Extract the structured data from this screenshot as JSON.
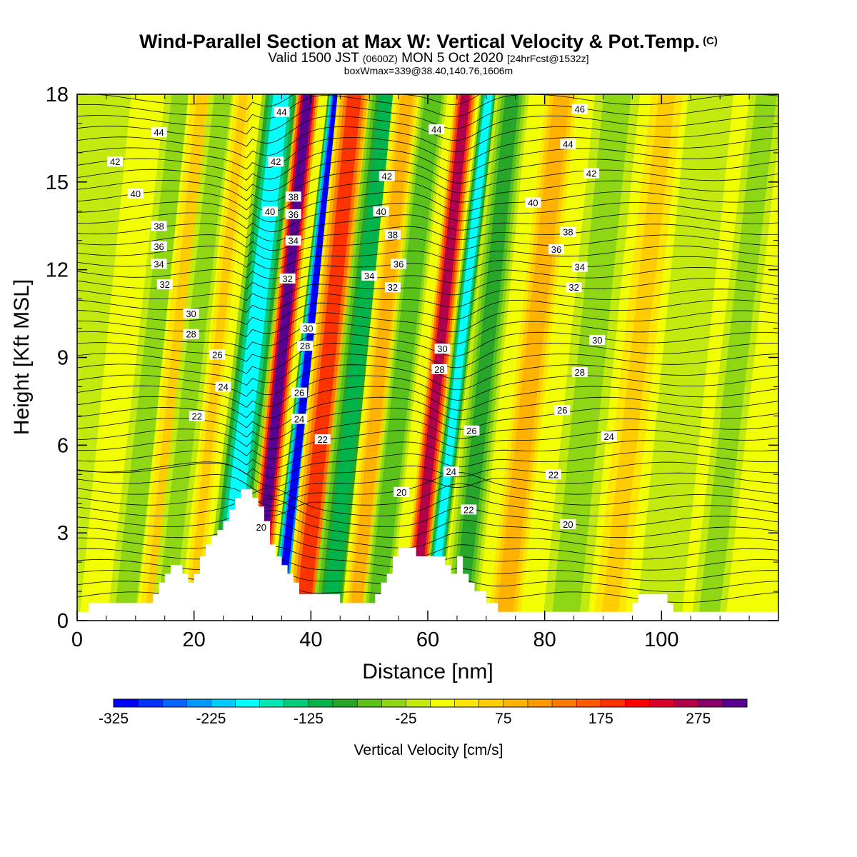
{
  "header": {
    "title": "Wind-Parallel Section at Max W: Vertical Velocity & Pot.Temp.",
    "copyright": "(C)",
    "valid_prefix": "Valid 1500 JST",
    "valid_utc": "(0600Z)",
    "valid_date": "MON 5 Oct 2020",
    "forecast": "[24hrFcst@1532z]",
    "box_info": "boxWmax=339@38.40,140.76,1606m"
  },
  "chart_data": {
    "type": "heatmap",
    "xlabel": "Distance [nm]",
    "ylabel": "Height [Kft MSL]",
    "xlim": [
      0,
      120
    ],
    "ylim": [
      0,
      18
    ],
    "x_ticks": [
      "0",
      "20",
      "40",
      "60",
      "80",
      "100"
    ],
    "y_ticks": [
      "0",
      "3",
      "6",
      "9",
      "12",
      "15",
      "18"
    ],
    "colorbar": {
      "label": "Vertical Velocity [cm/s]",
      "min": -325,
      "max": 350,
      "step": 25,
      "tick_labels": [
        "-325",
        "-225",
        "-125",
        "-25",
        "75",
        "175",
        "275"
      ],
      "colors": [
        "#0000ff",
        "#0033ff",
        "#0066ff",
        "#0099ff",
        "#00ccff",
        "#00ffff",
        "#00e6b4",
        "#00cc7a",
        "#00b34a",
        "#27a62a",
        "#5ac21a",
        "#8fd614",
        "#c2ea0e",
        "#f2ff00",
        "#ffe600",
        "#ffcc00",
        "#ffb300",
        "#ff9900",
        "#ff7a00",
        "#ff5a00",
        "#ff3300",
        "#ff0000",
        "#d9002a",
        "#b3004a",
        "#8a006a",
        "#5a0090"
      ]
    },
    "terrain_top_kft": [
      [
        0,
        0.3
      ],
      [
        2,
        0.6
      ],
      [
        12,
        0.6
      ],
      [
        13,
        0.9
      ],
      [
        14,
        1.3
      ],
      [
        15,
        1.6
      ],
      [
        16,
        1.9
      ],
      [
        17,
        1.9
      ],
      [
        18,
        1.6
      ],
      [
        19,
        1.3
      ],
      [
        20,
        1.6
      ],
      [
        21,
        2.2
      ],
      [
        22,
        2.6
      ],
      [
        23,
        2.9
      ],
      [
        24,
        3.1
      ],
      [
        25,
        3.4
      ],
      [
        26,
        3.8
      ],
      [
        27,
        4.2
      ],
      [
        28,
        4.5
      ],
      [
        29,
        4.5
      ],
      [
        30,
        4.2
      ],
      [
        31,
        3.9
      ],
      [
        32,
        3.4
      ],
      [
        33,
        2.6
      ],
      [
        34,
        2.2
      ],
      [
        35,
        1.9
      ],
      [
        36,
        1.6
      ],
      [
        37,
        1.3
      ],
      [
        38,
        0.9
      ],
      [
        45,
        0.6
      ],
      [
        50,
        0.6
      ],
      [
        51,
        0.9
      ],
      [
        52,
        1.3
      ],
      [
        53,
        1.6
      ],
      [
        54,
        2.2
      ],
      [
        55,
        2.5
      ],
      [
        57,
        2.5
      ],
      [
        58,
        2.2
      ],
      [
        60,
        2.2
      ],
      [
        63,
        1.9
      ],
      [
        64,
        1.6
      ],
      [
        65,
        2.2
      ],
      [
        66,
        1.6
      ],
      [
        67,
        1.3
      ],
      [
        68,
        1.0
      ],
      [
        70,
        0.6
      ],
      [
        72,
        0.3
      ],
      [
        94,
        0.3
      ],
      [
        95,
        0.6
      ],
      [
        96,
        0.9
      ],
      [
        100,
        0.9
      ],
      [
        101,
        0.6
      ],
      [
        102,
        0.3
      ],
      [
        120,
        0.3
      ]
    ],
    "velocity_bands": [
      {
        "x": 0,
        "dx": 5,
        "w": -25
      },
      {
        "x": 13,
        "dx": 3,
        "w": -50
      },
      {
        "x": 17,
        "dx": 2.5,
        "w": 50
      },
      {
        "x": 20,
        "dx": 2.5,
        "w": -50
      },
      {
        "x": 24,
        "dx": 1.8,
        "w": 50
      },
      {
        "x": 30,
        "dx": 3.4,
        "w": -200
      },
      {
        "x": 35,
        "dx": 2.0,
        "w": 300
      },
      {
        "x": 39.5,
        "dx": 1.6,
        "w": -325
      },
      {
        "x": 43,
        "dx": 3.0,
        "w": 175
      },
      {
        "x": 48,
        "dx": 3.0,
        "w": -125
      },
      {
        "x": 52,
        "dx": 2.5,
        "w": 75
      },
      {
        "x": 56,
        "dx": 2.5,
        "w": -75
      },
      {
        "x": 62,
        "dx": 2.0,
        "w": 250
      },
      {
        "x": 65.5,
        "dx": 1.6,
        "w": -200
      },
      {
        "x": 70,
        "dx": 3.0,
        "w": -100
      },
      {
        "x": 78,
        "dx": 3.5,
        "w": 75
      },
      {
        "x": 88,
        "dx": 4.0,
        "w": -50
      },
      {
        "x": 96,
        "dx": 3.5,
        "w": 50
      },
      {
        "x": 104,
        "dx": 4.0,
        "w": -25
      },
      {
        "x": 113,
        "dx": 3.0,
        "w": -50
      }
    ],
    "theta_contours": [
      {
        "value": "20",
        "label_at": [
          [
            31.5,
            3.2
          ],
          [
            55.5,
            4.4
          ],
          [
            84,
            3.3
          ]
        ]
      },
      {
        "value": "22",
        "label_at": [
          [
            20.5,
            7.0
          ],
          [
            42,
            6.2
          ],
          [
            67,
            3.8
          ],
          [
            81.5,
            5.0
          ]
        ]
      },
      {
        "value": "24",
        "label_at": [
          [
            25,
            8.0
          ],
          [
            38,
            6.9
          ],
          [
            64,
            5.1
          ],
          [
            91,
            6.3
          ]
        ]
      },
      {
        "value": "26",
        "label_at": [
          [
            24,
            9.1
          ],
          [
            38,
            7.8
          ],
          [
            67.5,
            6.5
          ],
          [
            83,
            7.2
          ]
        ]
      },
      {
        "value": "28",
        "label_at": [
          [
            19.5,
            9.8
          ],
          [
            39,
            9.4
          ],
          [
            62,
            8.6
          ],
          [
            86,
            8.5
          ]
        ]
      },
      {
        "value": "30",
        "label_at": [
          [
            19.5,
            10.5
          ],
          [
            39.5,
            10.0
          ],
          [
            62.5,
            9.3
          ],
          [
            89,
            9.6
          ]
        ]
      },
      {
        "value": "32",
        "label_at": [
          [
            15,
            11.5
          ],
          [
            36,
            11.7
          ],
          [
            54,
            11.4
          ],
          [
            85,
            11.4
          ]
        ]
      },
      {
        "value": "34",
        "label_at": [
          [
            14,
            12.2
          ],
          [
            37,
            13.0
          ],
          [
            50,
            11.8
          ],
          [
            86,
            12.1
          ]
        ]
      },
      {
        "value": "36",
        "label_at": [
          [
            14,
            12.8
          ],
          [
            37,
            13.9
          ],
          [
            55,
            12.2
          ],
          [
            82,
            12.7
          ]
        ]
      },
      {
        "value": "38",
        "label_at": [
          [
            14,
            13.5
          ],
          [
            37,
            14.5
          ],
          [
            54,
            13.2
          ],
          [
            84,
            13.3
          ]
        ]
      },
      {
        "value": "40",
        "label_at": [
          [
            10,
            14.6
          ],
          [
            33,
            14.0
          ],
          [
            52,
            14.0
          ],
          [
            78,
            14.3
          ]
        ]
      },
      {
        "value": "42",
        "label_at": [
          [
            6.5,
            15.7
          ],
          [
            34,
            15.7
          ],
          [
            53,
            15.2
          ],
          [
            88,
            15.3
          ]
        ]
      },
      {
        "value": "44",
        "label_at": [
          [
            14,
            16.7
          ],
          [
            35,
            17.4
          ],
          [
            61.5,
            16.8
          ],
          [
            84,
            16.3
          ]
        ]
      },
      {
        "value": "46",
        "label_at": [
          [
            86,
            17.5
          ]
        ]
      }
    ]
  }
}
